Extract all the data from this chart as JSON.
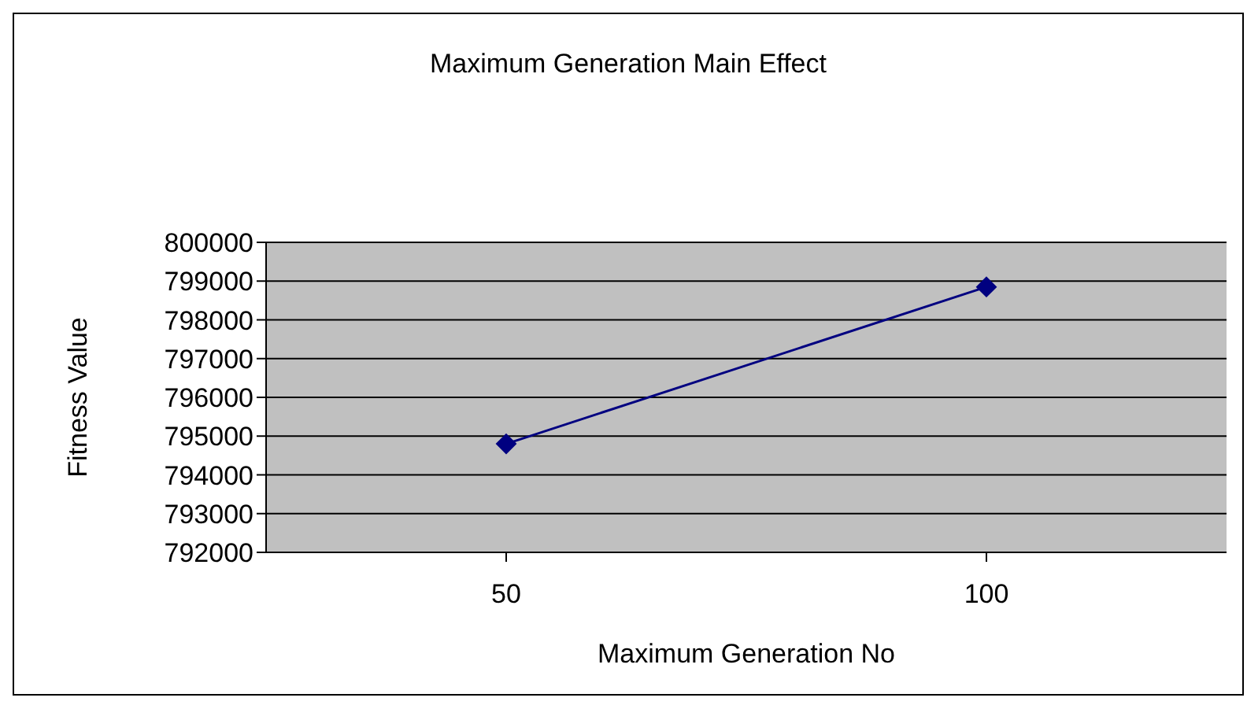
{
  "chart_data": {
    "type": "line",
    "title": "Maximum Generation Main Effect",
    "xlabel": "Maximum Generation No",
    "ylabel": "Fitness Value",
    "categories": [
      "50",
      "100"
    ],
    "series": [
      {
        "color": "#000080",
        "values": [
          794800,
          798850
        ]
      }
    ],
    "ylim": [
      792000,
      800000
    ],
    "yticks": [
      792000,
      793000,
      794000,
      795000,
      796000,
      797000,
      798000,
      799000,
      800000
    ],
    "grid": "y",
    "marker": "diamond",
    "line_style": "solid"
  }
}
